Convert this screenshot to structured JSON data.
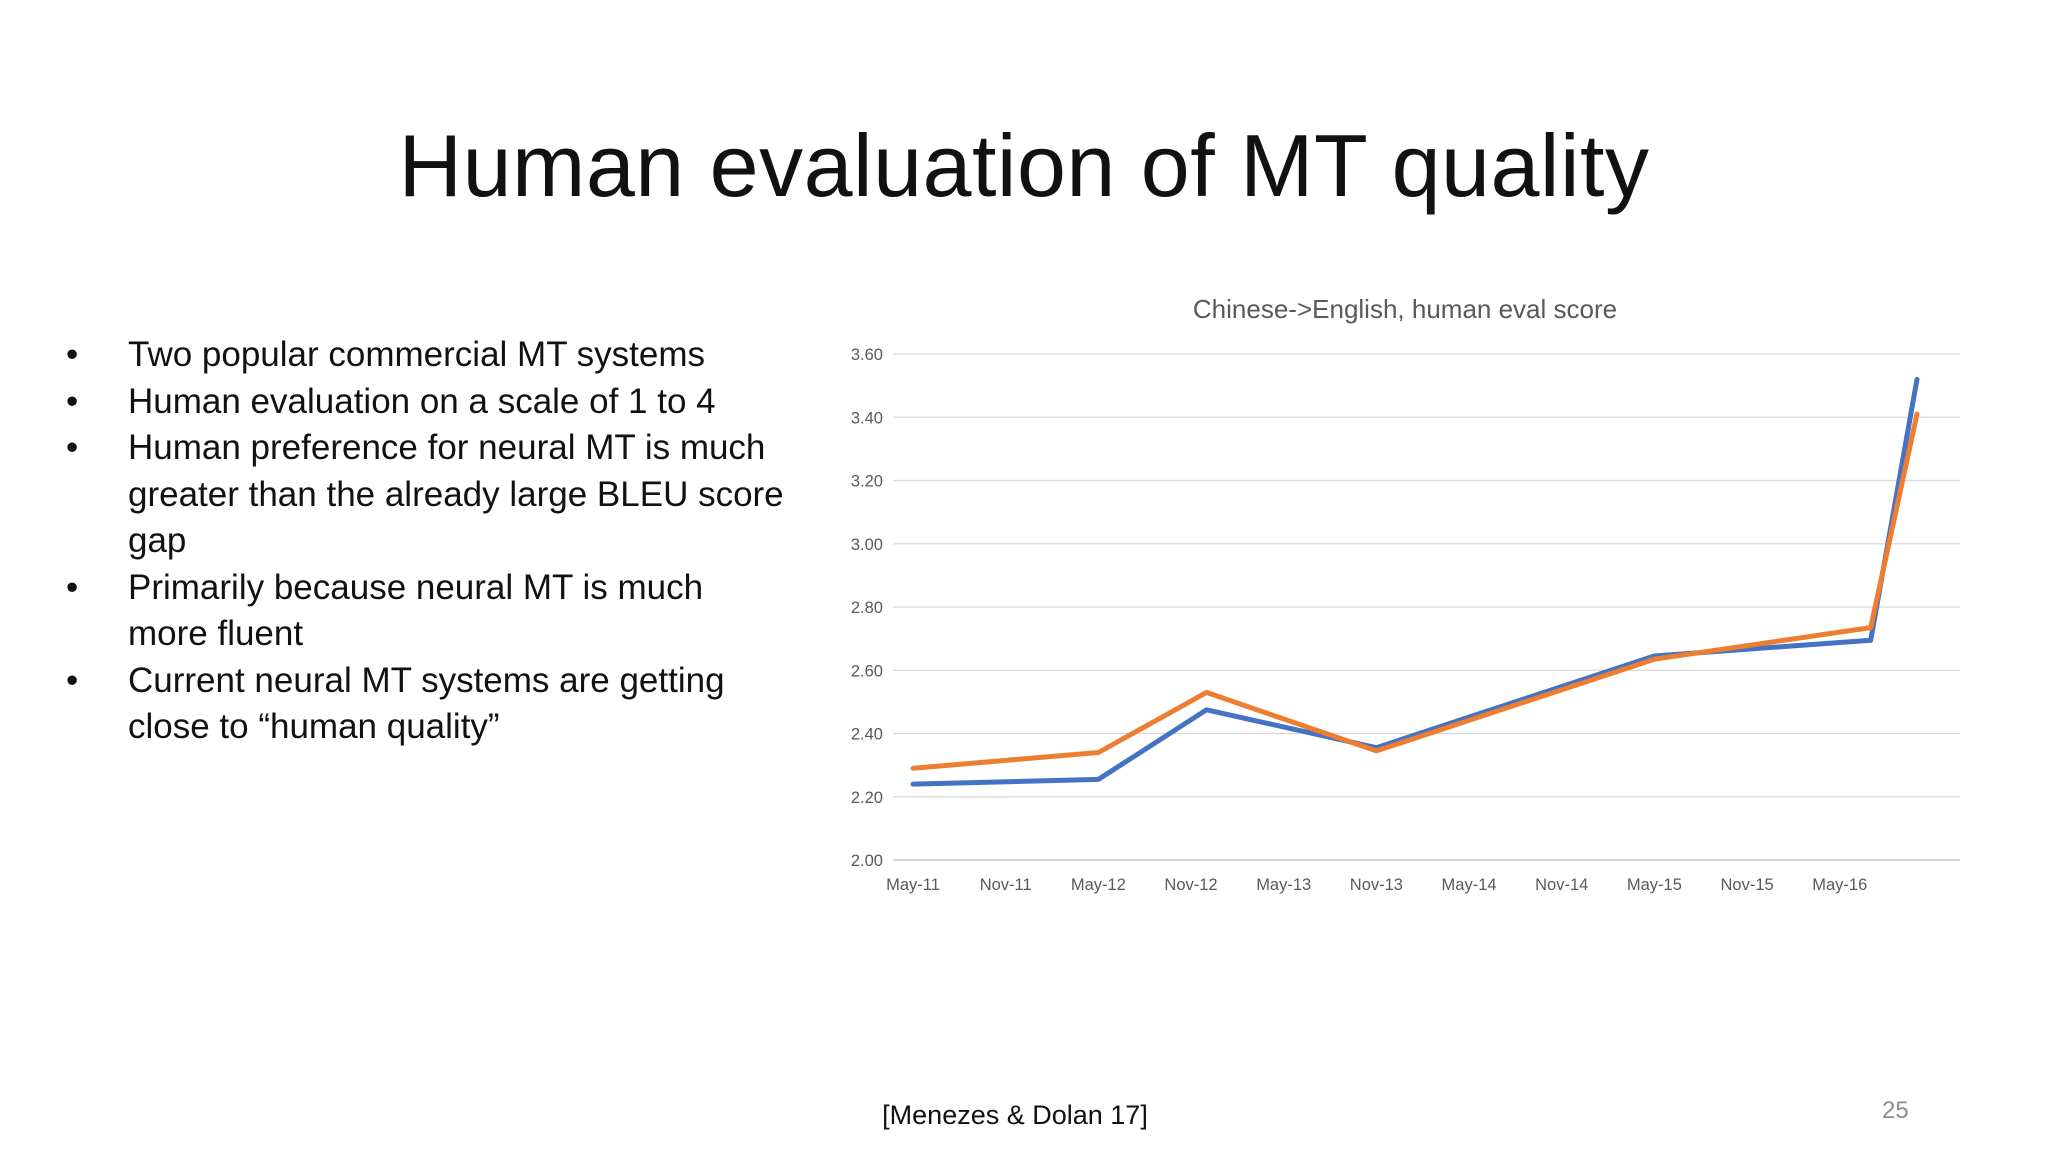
{
  "slide": {
    "title": "Human evaluation of MT quality",
    "bullets": [
      "Two popular commercial MT systems",
      "Human evaluation on a scale of 1 to 4",
      "Human preference for neural MT is much greater than the already large BLEU score gap",
      "Primarily because neural MT is much more fluent",
      "Current neural MT systems are getting close to “human quality”"
    ],
    "bullet_symbol": "•",
    "citation": "[Menezes & Dolan 17]",
    "page_number": "25"
  },
  "chart_data": {
    "type": "line",
    "title": "Chinese->English, human eval score",
    "xlabel": "",
    "ylabel": "",
    "categories": [
      "May-11",
      "Nov-11",
      "May-12",
      "Nov-12",
      "May-13",
      "Nov-13",
      "May-14",
      "Nov-14",
      "May-15",
      "Nov-15",
      "May-16"
    ],
    "x_range": [
      "May-11",
      "Oct-16"
    ],
    "ylim": [
      2.0,
      3.6
    ],
    "yticks": [
      2.0,
      2.2,
      2.4,
      2.6,
      2.8,
      3.0,
      3.2,
      3.4,
      3.6
    ],
    "ytick_labels": [
      "2.00",
      "2.20",
      "2.40",
      "2.60",
      "2.80",
      "3.00",
      "3.20",
      "3.40",
      "3.60"
    ],
    "grid": true,
    "legend": "none",
    "series": [
      {
        "color": "#4472C4",
        "points": [
          {
            "x": "May-11",
            "y": 2.24
          },
          {
            "x": "May-12",
            "y": 2.255
          },
          {
            "x": "Dec-12",
            "y": 2.475
          },
          {
            "x": "Nov-13",
            "y": 2.355
          },
          {
            "x": "May-15",
            "y": 2.645
          },
          {
            "x": "Jul-16",
            "y": 2.695
          },
          {
            "x": "Oct-16",
            "y": 3.52
          }
        ]
      },
      {
        "color": "#ED7D31",
        "points": [
          {
            "x": "May-11",
            "y": 2.29
          },
          {
            "x": "May-12",
            "y": 2.34
          },
          {
            "x": "Dec-12",
            "y": 2.53
          },
          {
            "x": "Nov-13",
            "y": 2.345
          },
          {
            "x": "May-15",
            "y": 2.635
          },
          {
            "x": "Jul-16",
            "y": 2.735
          },
          {
            "x": "Oct-16",
            "y": 3.41
          }
        ]
      }
    ]
  }
}
